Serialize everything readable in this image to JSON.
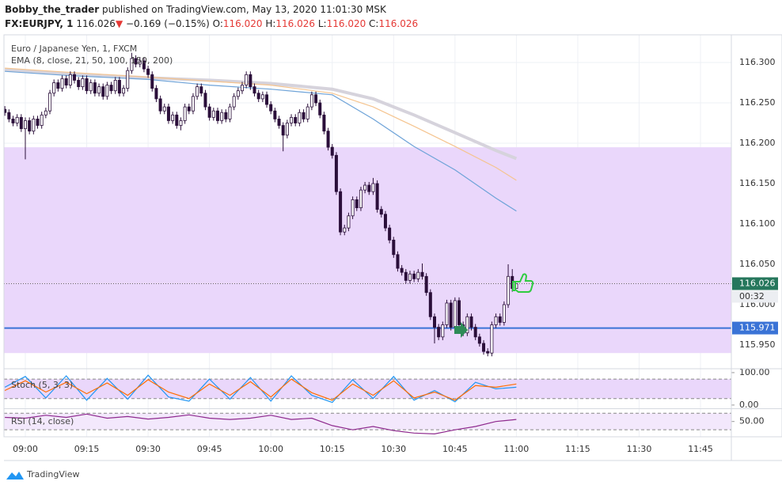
{
  "header": {
    "author": "Bobby_the_trader",
    "published": "published on TradingView.com, May 13, 2020 11:01:30 MSK",
    "symbol": "FX:EURJPY, 1",
    "price": "116.026",
    "arrow": "▼",
    "change": "−0.169 (−0.15%)",
    "o_label": "O:",
    "o": "116.020",
    "h_label": "H:",
    "h": "116.026",
    "l_label": "L:",
    "l": "116.020",
    "c_label": "C:",
    "c": "116.026"
  },
  "footer": {
    "brand": "TradingView"
  },
  "chart_data": {
    "type": "candlestick",
    "title": "Euro / Japanese Yen, 1, FXCM",
    "up_color": "#ffffff",
    "down_color": "#2b0f3a",
    "outline_color": "#2b0f3a",
    "ylim": [
      115.92,
      116.32
    ],
    "yticks": [
      {
        "value": 116.3,
        "label": "116.300"
      },
      {
        "value": 116.25,
        "label": "116.250"
      },
      {
        "value": 116.2,
        "label": "116.200"
      },
      {
        "value": 116.15,
        "label": "116.150"
      },
      {
        "value": 116.1,
        "label": "116.100"
      },
      {
        "value": 116.05,
        "label": "116.050"
      },
      {
        "value": 116.0,
        "label": "116.000"
      },
      {
        "value": 115.95,
        "label": "115.950"
      }
    ],
    "xticks": [
      "09:00",
      "09:15",
      "09:30",
      "09:45",
      "10:00",
      "10:15",
      "10:30",
      "10:45",
      "11:00",
      "11:15",
      "11:30",
      "11:45"
    ],
    "grid": true,
    "x": [
      "08:55",
      "08:56",
      "08:57",
      "08:58",
      "08:59",
      "09:00",
      "09:01",
      "09:02",
      "09:03",
      "09:04",
      "09:05",
      "09:06",
      "09:07",
      "09:08",
      "09:09",
      "09:10",
      "09:11",
      "09:12",
      "09:13",
      "09:14",
      "09:15",
      "09:16",
      "09:17",
      "09:18",
      "09:19",
      "09:20",
      "09:21",
      "09:22",
      "09:23",
      "09:24",
      "09:25",
      "09:26",
      "09:27",
      "09:28",
      "09:29",
      "09:30",
      "09:31",
      "09:32",
      "09:33",
      "09:34",
      "09:35",
      "09:36",
      "09:37",
      "09:38",
      "09:39",
      "09:40",
      "09:41",
      "09:42",
      "09:43",
      "09:44",
      "09:45",
      "09:46",
      "09:47",
      "09:48",
      "09:49",
      "09:50",
      "09:51",
      "09:52",
      "09:53",
      "09:54",
      "09:55",
      "09:56",
      "09:57",
      "09:58",
      "09:59",
      "10:00",
      "10:01",
      "10:02",
      "10:03",
      "10:04",
      "10:05",
      "10:06",
      "10:07",
      "10:08",
      "10:09",
      "10:10",
      "10:11",
      "10:12",
      "10:13",
      "10:14",
      "10:15",
      "10:16",
      "10:17",
      "10:18",
      "10:19",
      "10:20",
      "10:21",
      "10:22",
      "10:23",
      "10:24",
      "10:25",
      "10:26",
      "10:27",
      "10:28",
      "10:29",
      "10:30",
      "10:31",
      "10:32",
      "10:33",
      "10:34",
      "10:35",
      "10:36",
      "10:37",
      "10:38",
      "10:39",
      "10:40",
      "10:41",
      "10:42",
      "10:43",
      "10:44",
      "10:45",
      "10:46",
      "10:47",
      "10:48",
      "10:49",
      "10:50",
      "10:51",
      "10:52",
      "10:53",
      "10:54",
      "10:55",
      "10:56",
      "10:57",
      "10:58",
      "10:59",
      "11:00"
    ],
    "ohlc": [
      [
        116.242,
        116.246,
        116.234,
        116.238
      ],
      [
        116.238,
        116.242,
        116.226,
        116.23
      ],
      [
        116.23,
        116.234,
        116.221,
        116.225
      ],
      [
        116.225,
        116.236,
        116.221,
        116.232
      ],
      [
        116.232,
        116.236,
        116.214,
        116.218
      ],
      [
        116.218,
        116.232,
        116.18,
        116.228
      ],
      [
        116.228,
        116.232,
        116.211,
        116.215
      ],
      [
        116.215,
        116.234,
        116.211,
        116.23
      ],
      [
        116.23,
        116.234,
        116.218,
        116.222
      ],
      [
        116.222,
        116.239,
        116.218,
        116.235
      ],
      [
        116.235,
        116.244,
        116.231,
        116.24
      ],
      [
        116.24,
        116.266,
        116.236,
        116.262
      ],
      [
        116.262,
        116.279,
        116.258,
        116.275
      ],
      [
        116.275,
        116.279,
        116.264,
        116.268
      ],
      [
        116.268,
        116.284,
        116.264,
        116.28
      ],
      [
        116.28,
        116.284,
        116.268,
        116.272
      ],
      [
        116.272,
        116.289,
        116.268,
        116.285
      ],
      [
        116.285,
        116.289,
        116.274,
        116.278
      ],
      [
        116.278,
        116.282,
        116.266,
        116.27
      ],
      [
        116.27,
        116.284,
        116.266,
        116.28
      ],
      [
        116.28,
        116.284,
        116.261,
        116.265
      ],
      [
        116.265,
        116.279,
        116.261,
        116.275
      ],
      [
        116.275,
        116.279,
        116.258,
        116.262
      ],
      [
        116.262,
        116.274,
        116.258,
        116.27
      ],
      [
        116.27,
        116.274,
        116.254,
        116.258
      ],
      [
        116.258,
        116.276,
        116.254,
        116.272
      ],
      [
        116.272,
        116.276,
        116.261,
        116.265
      ],
      [
        116.265,
        116.282,
        116.261,
        116.278
      ],
      [
        116.278,
        116.282,
        116.258,
        116.262
      ],
      [
        116.262,
        116.272,
        116.258,
        116.268
      ],
      [
        116.268,
        116.294,
        116.264,
        116.29
      ],
      [
        116.29,
        116.312,
        116.286,
        116.305
      ],
      [
        116.305,
        116.309,
        116.294,
        116.298
      ],
      [
        116.298,
        116.306,
        116.294,
        116.302
      ],
      [
        116.302,
        116.306,
        116.288,
        116.292
      ],
      [
        116.292,
        116.296,
        116.281,
        116.285
      ],
      [
        116.285,
        116.289,
        116.264,
        116.268
      ],
      [
        116.268,
        116.272,
        116.251,
        116.255
      ],
      [
        116.255,
        116.259,
        116.236,
        116.24
      ],
      [
        116.24,
        116.249,
        116.236,
        116.245
      ],
      [
        116.245,
        116.249,
        116.224,
        116.228
      ],
      [
        116.228,
        116.239,
        116.224,
        116.235
      ],
      [
        116.235,
        116.239,
        116.218,
        116.222
      ],
      [
        116.222,
        116.232,
        116.216,
        116.228
      ],
      [
        116.228,
        116.249,
        116.224,
        116.245
      ],
      [
        116.245,
        116.249,
        116.236,
        116.24
      ],
      [
        116.24,
        116.262,
        116.236,
        116.258
      ],
      [
        116.258,
        116.274,
        116.254,
        116.27
      ],
      [
        116.27,
        116.274,
        116.258,
        116.262
      ],
      [
        116.262,
        116.266,
        116.241,
        116.245
      ],
      [
        116.245,
        116.249,
        116.228,
        116.232
      ],
      [
        116.232,
        116.244,
        116.228,
        116.24
      ],
      [
        116.24,
        116.244,
        116.224,
        116.228
      ],
      [
        116.228,
        116.242,
        116.224,
        116.238
      ],
      [
        116.238,
        116.242,
        116.226,
        116.23
      ],
      [
        116.23,
        116.249,
        116.226,
        116.245
      ],
      [
        116.245,
        116.262,
        116.241,
        116.258
      ],
      [
        116.258,
        116.269,
        116.254,
        116.265
      ],
      [
        116.265,
        116.276,
        116.261,
        116.272
      ],
      [
        116.272,
        116.289,
        116.268,
        116.285
      ],
      [
        116.285,
        116.289,
        116.266,
        116.27
      ],
      [
        116.27,
        116.274,
        116.258,
        116.262
      ],
      [
        116.262,
        116.266,
        116.251,
        116.255
      ],
      [
        116.255,
        116.264,
        116.251,
        116.26
      ],
      [
        116.26,
        116.264,
        116.244,
        116.248
      ],
      [
        116.248,
        116.252,
        116.236,
        116.24
      ],
      [
        116.24,
        116.244,
        116.226,
        116.23
      ],
      [
        116.23,
        116.234,
        116.218,
        116.222
      ],
      [
        116.222,
        116.226,
        116.19,
        116.21
      ],
      [
        116.21,
        116.229,
        116.206,
        116.225
      ],
      [
        116.225,
        116.236,
        116.221,
        116.232
      ],
      [
        116.232,
        116.236,
        116.221,
        116.225
      ],
      [
        116.225,
        116.242,
        116.221,
        116.238
      ],
      [
        116.238,
        116.242,
        116.226,
        116.23
      ],
      [
        116.23,
        116.249,
        116.226,
        116.245
      ],
      [
        116.245,
        116.264,
        116.241,
        116.26
      ],
      [
        116.26,
        116.264,
        116.246,
        116.25
      ],
      [
        116.25,
        116.254,
        116.231,
        116.235
      ],
      [
        116.235,
        116.239,
        116.211,
        116.215
      ],
      [
        116.215,
        116.219,
        116.191,
        116.195
      ],
      [
        116.195,
        116.199,
        116.181,
        116.185
      ],
      [
        116.185,
        116.189,
        116.136,
        116.14
      ],
      [
        116.14,
        116.144,
        116.086,
        116.09
      ],
      [
        116.09,
        116.099,
        116.086,
        116.095
      ],
      [
        116.095,
        116.114,
        116.091,
        116.11
      ],
      [
        116.11,
        116.134,
        116.106,
        116.13
      ],
      [
        116.13,
        116.134,
        116.116,
        116.12
      ],
      [
        116.12,
        116.146,
        116.116,
        116.142
      ],
      [
        116.142,
        116.152,
        116.138,
        116.148
      ],
      [
        116.148,
        116.152,
        116.136,
        116.14
      ],
      [
        116.14,
        116.157,
        116.136,
        116.15
      ],
      [
        116.15,
        116.154,
        116.114,
        116.118
      ],
      [
        116.118,
        116.122,
        116.108,
        116.112
      ],
      [
        116.112,
        116.116,
        116.091,
        116.095
      ],
      [
        116.095,
        116.099,
        116.076,
        116.08
      ],
      [
        116.08,
        116.084,
        116.058,
        116.062
      ],
      [
        116.062,
        116.066,
        116.041,
        116.045
      ],
      [
        116.045,
        116.049,
        116.036,
        116.04
      ],
      [
        116.04,
        116.044,
        116.026,
        116.03
      ],
      [
        116.03,
        116.042,
        116.026,
        116.038
      ],
      [
        116.038,
        116.042,
        116.028,
        116.032
      ],
      [
        116.032,
        116.044,
        116.028,
        116.04
      ],
      [
        116.04,
        116.051,
        116.031,
        116.035
      ],
      [
        116.035,
        116.039,
        116.011,
        116.015
      ],
      [
        116.015,
        116.019,
        115.981,
        115.985
      ],
      [
        115.985,
        115.989,
        115.952,
        115.972
      ],
      [
        115.972,
        115.976,
        115.956,
        115.96
      ],
      [
        115.96,
        115.979,
        115.956,
        115.975
      ],
      [
        115.975,
        116.006,
        115.971,
        116.002
      ],
      [
        116.002,
        116.006,
        115.968,
        115.972
      ],
      [
        115.972,
        116.009,
        115.968,
        116.005
      ],
      [
        116.005,
        116.009,
        115.971,
        115.975
      ],
      [
        115.975,
        115.979,
        115.961,
        115.965
      ],
      [
        115.965,
        115.989,
        115.961,
        115.985
      ],
      [
        115.985,
        115.989,
        115.968,
        115.972
      ],
      [
        115.972,
        115.976,
        115.956,
        115.96
      ],
      [
        115.96,
        115.964,
        115.948,
        115.952
      ],
      [
        115.952,
        115.956,
        115.938,
        115.942
      ],
      [
        115.942,
        115.946,
        115.936,
        115.94
      ],
      [
        115.94,
        115.979,
        115.936,
        115.975
      ],
      [
        115.975,
        115.989,
        115.971,
        115.985
      ],
      [
        115.985,
        115.989,
        115.974,
        115.978
      ],
      [
        115.978,
        116.004,
        115.974,
        116.0
      ],
      [
        116.0,
        116.05,
        115.996,
        116.035
      ],
      [
        116.035,
        116.044,
        116.016,
        116.02
      ],
      [
        116.02,
        116.026,
        116.02,
        116.026
      ]
    ],
    "zone": {
      "from": 115.94,
      "to": 116.195,
      "color": "#ead7fb"
    },
    "level": {
      "value": 115.971,
      "color": "#3a73d6"
    },
    "last_price": {
      "value": 116.026,
      "color": "#26775c",
      "countdown": "00:32"
    },
    "ema": {
      "label": "EMA (8, close, 21, 50, 100, 150, 200)",
      "x": [
        "08:55",
        "09:10",
        "09:30",
        "09:45",
        "10:00",
        "10:15",
        "10:25",
        "10:35",
        "10:45",
        "10:55",
        "11:00"
      ],
      "series": [
        {
          "color": "#d6d3dc",
          "values": [
            116.291,
            116.286,
            116.281,
            116.278,
            116.274,
            116.267,
            116.255,
            116.235,
            116.213,
            116.191,
            116.181
          ]
        },
        {
          "color": "#f5c48f",
          "values": [
            116.293,
            116.288,
            116.282,
            116.277,
            116.272,
            116.262,
            116.245,
            116.221,
            116.196,
            116.17,
            116.154
          ]
        },
        {
          "color": "#6ea3d8",
          "values": [
            116.289,
            116.284,
            116.279,
            116.272,
            116.267,
            116.26,
            116.23,
            116.196,
            116.167,
            116.132,
            116.116
          ]
        }
      ]
    },
    "stoch": {
      "label": "Stoch (5, 3, 3)",
      "ylim": [
        -10,
        112
      ],
      "yticks": [
        {
          "value": 100,
          "label": "100.00"
        },
        {
          "value": 0,
          "label": "0.00"
        }
      ],
      "bands": [
        80,
        20
      ],
      "band_color": "#ead7fb",
      "x": [
        "08:55",
        "09:00",
        "09:05",
        "09:10",
        "09:15",
        "09:20",
        "09:25",
        "09:30",
        "09:35",
        "09:40",
        "09:45",
        "09:50",
        "09:55",
        "10:00",
        "10:05",
        "10:10",
        "10:15",
        "10:20",
        "10:25",
        "10:30",
        "10:35",
        "10:40",
        "10:45",
        "10:50",
        "10:55",
        "11:00"
      ],
      "series": [
        {
          "color": "#2196f3",
          "values": [
            55,
            88,
            22,
            90,
            15,
            82,
            18,
            92,
            25,
            12,
            80,
            18,
            85,
            12,
            90,
            30,
            8,
            78,
            20,
            88,
            15,
            45,
            10,
            70,
            50,
            55
          ]
        },
        {
          "color": "#ff6d00",
          "values": [
            45,
            75,
            40,
            70,
            35,
            68,
            30,
            78,
            40,
            20,
            65,
            30,
            72,
            25,
            80,
            38,
            15,
            65,
            30,
            75,
            22,
            40,
            15,
            60,
            55,
            65
          ]
        }
      ]
    },
    "rsi": {
      "label": "RSI (14, close)",
      "ylim": [
        15,
        80
      ],
      "yticks": [
        {
          "value": 50,
          "label": "50.00"
        }
      ],
      "bands": [
        70,
        30
      ],
      "band_color": "#f3e8fc",
      "x": [
        "08:55",
        "09:00",
        "09:05",
        "09:10",
        "09:15",
        "09:20",
        "09:25",
        "09:30",
        "09:35",
        "09:40",
        "09:45",
        "09:50",
        "09:55",
        "10:00",
        "10:05",
        "10:10",
        "10:15",
        "10:20",
        "10:25",
        "10:30",
        "10:35",
        "10:40",
        "10:45",
        "10:50",
        "10:55",
        "11:00"
      ],
      "series": [
        {
          "color": "#8e2a8e",
          "values": [
            60,
            58,
            65,
            60,
            68,
            58,
            62,
            56,
            60,
            66,
            58,
            55,
            58,
            65,
            55,
            58,
            40,
            30,
            38,
            28,
            22,
            20,
            30,
            38,
            50,
            55
          ]
        }
      ]
    }
  }
}
